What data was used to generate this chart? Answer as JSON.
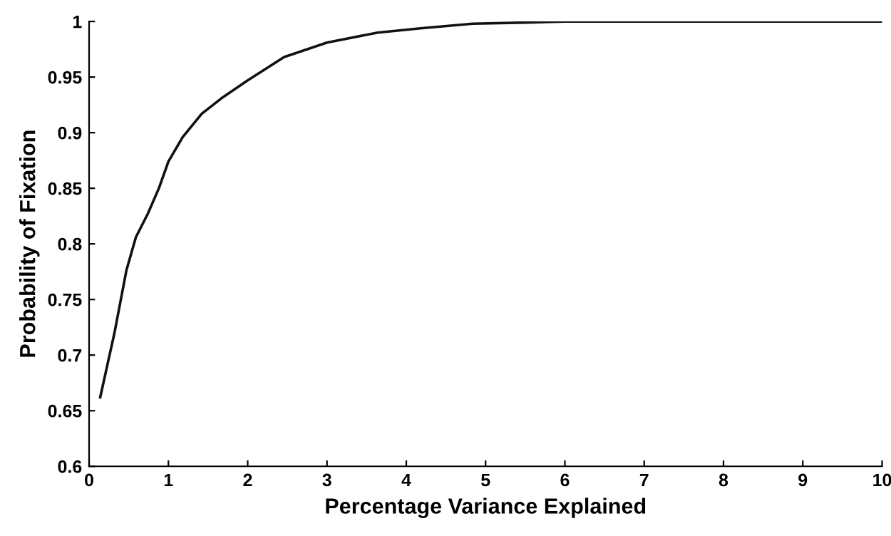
{
  "chart_data": {
    "type": "line",
    "xlabel": "Percentage Variance Explained",
    "ylabel": "Probability of Fixation",
    "xlim": [
      0,
      10
    ],
    "xticks": [
      0,
      1,
      2,
      3,
      4,
      5,
      6,
      7,
      8,
      9,
      10
    ],
    "ylim": [
      0.6,
      1
    ],
    "yticks": [
      0.6,
      0.65,
      0.7,
      0.75,
      0.8,
      0.85,
      0.9,
      0.95,
      1
    ],
    "grid": false,
    "legend": false,
    "marker": "none",
    "line_style": "solid",
    "series": [
      {
        "color": "#111111",
        "x": [
          0.14,
          0.32,
          0.47,
          0.59,
          0.74,
          0.88,
          1.0,
          1.18,
          1.42,
          1.69,
          2.0,
          2.46,
          3.0,
          3.64,
          4.2,
          4.84,
          5.5,
          6.0,
          7.0,
          8.0,
          9.0,
          10.0
        ],
        "values": [
          0.662,
          0.72,
          0.776,
          0.806,
          0.827,
          0.85,
          0.874,
          0.896,
          0.917,
          0.932,
          0.947,
          0.968,
          0.981,
          0.99,
          0.994,
          0.998,
          0.999,
          1.0,
          1.0,
          1.0,
          1.0,
          1.0
        ]
      }
    ]
  }
}
